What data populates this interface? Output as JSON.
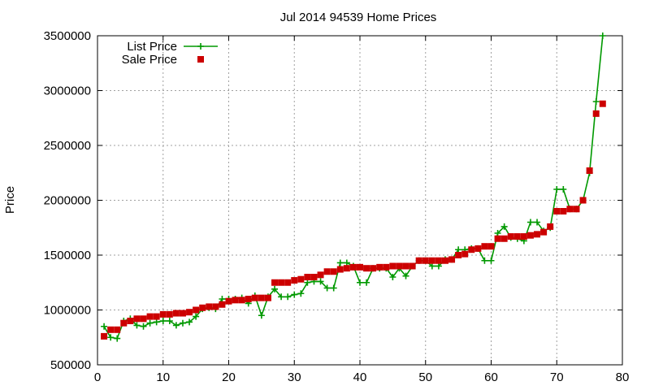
{
  "chart_data": {
    "type": "line",
    "title": "Jul 2014 94539 Home Prices",
    "xlabel": "",
    "ylabel": "Price",
    "xlim": [
      0,
      80
    ],
    "ylim": [
      500000,
      3500000
    ],
    "xticks": [
      "0",
      "10",
      "20",
      "30",
      "40",
      "50",
      "60",
      "70",
      "80"
    ],
    "yticks": [
      "500000",
      "1000000",
      "1500000",
      "2000000",
      "2500000",
      "3000000",
      "3500000"
    ],
    "grid": true,
    "legend_position": "top-left",
    "series": [
      {
        "name": "List Price",
        "style": "line-with-plus-markers",
        "color": "#009900",
        "values": [
          [
            1,
            850000
          ],
          [
            2,
            750000
          ],
          [
            3,
            740000
          ],
          [
            4,
            900000
          ],
          [
            5,
            920000
          ],
          [
            6,
            860000
          ],
          [
            7,
            850000
          ],
          [
            8,
            880000
          ],
          [
            9,
            890000
          ],
          [
            10,
            900000
          ],
          [
            11,
            900000
          ],
          [
            12,
            860000
          ],
          [
            13,
            880000
          ],
          [
            14,
            890000
          ],
          [
            15,
            940000
          ],
          [
            16,
            1010000
          ],
          [
            17,
            1020000
          ],
          [
            18,
            1010000
          ],
          [
            19,
            1100000
          ],
          [
            20,
            1100000
          ],
          [
            21,
            1100000
          ],
          [
            22,
            1110000
          ],
          [
            23,
            1060000
          ],
          [
            24,
            1130000
          ],
          [
            25,
            950000
          ],
          [
            26,
            1120000
          ],
          [
            27,
            1190000
          ],
          [
            28,
            1120000
          ],
          [
            29,
            1120000
          ],
          [
            30,
            1140000
          ],
          [
            31,
            1150000
          ],
          [
            32,
            1250000
          ],
          [
            33,
            1260000
          ],
          [
            34,
            1260000
          ],
          [
            35,
            1200000
          ],
          [
            36,
            1200000
          ],
          [
            37,
            1430000
          ],
          [
            38,
            1430000
          ],
          [
            39,
            1400000
          ],
          [
            40,
            1250000
          ],
          [
            41,
            1250000
          ],
          [
            42,
            1380000
          ],
          [
            43,
            1380000
          ],
          [
            44,
            1380000
          ],
          [
            45,
            1300000
          ],
          [
            46,
            1380000
          ],
          [
            47,
            1310000
          ],
          [
            48,
            1400000
          ],
          [
            49,
            1450000
          ],
          [
            50,
            1450000
          ],
          [
            51,
            1400000
          ],
          [
            52,
            1400000
          ],
          [
            53,
            1460000
          ],
          [
            54,
            1460000
          ],
          [
            55,
            1550000
          ],
          [
            56,
            1550000
          ],
          [
            57,
            1560000
          ],
          [
            58,
            1560000
          ],
          [
            59,
            1450000
          ],
          [
            60,
            1450000
          ],
          [
            61,
            1700000
          ],
          [
            62,
            1760000
          ],
          [
            63,
            1660000
          ],
          [
            64,
            1650000
          ],
          [
            65,
            1630000
          ],
          [
            66,
            1800000
          ],
          [
            67,
            1800000
          ],
          [
            68,
            1720000
          ],
          [
            69,
            1750000
          ],
          [
            70,
            2100000
          ],
          [
            71,
            2100000
          ],
          [
            72,
            1920000
          ],
          [
            73,
            1920000
          ],
          [
            74,
            2000000
          ],
          [
            75,
            2250000
          ],
          [
            76,
            2900000
          ],
          [
            77,
            3500000
          ]
        ]
      },
      {
        "name": "Sale Price",
        "style": "square-points",
        "color": "#cc0000",
        "values": [
          [
            1,
            760000
          ],
          [
            2,
            820000
          ],
          [
            3,
            820000
          ],
          [
            4,
            880000
          ],
          [
            5,
            900000
          ],
          [
            6,
            920000
          ],
          [
            7,
            920000
          ],
          [
            8,
            940000
          ],
          [
            9,
            940000
          ],
          [
            10,
            960000
          ],
          [
            11,
            960000
          ],
          [
            12,
            970000
          ],
          [
            13,
            970000
          ],
          [
            14,
            980000
          ],
          [
            15,
            1000000
          ],
          [
            16,
            1020000
          ],
          [
            17,
            1030000
          ],
          [
            18,
            1030000
          ],
          [
            19,
            1050000
          ],
          [
            20,
            1080000
          ],
          [
            21,
            1090000
          ],
          [
            22,
            1090000
          ],
          [
            23,
            1100000
          ],
          [
            24,
            1110000
          ],
          [
            25,
            1110000
          ],
          [
            26,
            1110000
          ],
          [
            27,
            1250000
          ],
          [
            28,
            1250000
          ],
          [
            29,
            1250000
          ],
          [
            30,
            1270000
          ],
          [
            31,
            1280000
          ],
          [
            32,
            1300000
          ],
          [
            33,
            1300000
          ],
          [
            34,
            1320000
          ],
          [
            35,
            1350000
          ],
          [
            36,
            1350000
          ],
          [
            37,
            1370000
          ],
          [
            38,
            1380000
          ],
          [
            39,
            1390000
          ],
          [
            40,
            1390000
          ],
          [
            41,
            1380000
          ],
          [
            42,
            1380000
          ],
          [
            43,
            1390000
          ],
          [
            44,
            1390000
          ],
          [
            45,
            1400000
          ],
          [
            46,
            1400000
          ],
          [
            47,
            1400000
          ],
          [
            48,
            1400000
          ],
          [
            49,
            1450000
          ],
          [
            50,
            1450000
          ],
          [
            51,
            1450000
          ],
          [
            52,
            1450000
          ],
          [
            53,
            1450000
          ],
          [
            54,
            1460000
          ],
          [
            55,
            1500000
          ],
          [
            56,
            1510000
          ],
          [
            57,
            1550000
          ],
          [
            58,
            1560000
          ],
          [
            59,
            1580000
          ],
          [
            60,
            1580000
          ],
          [
            61,
            1650000
          ],
          [
            62,
            1650000
          ],
          [
            63,
            1670000
          ],
          [
            64,
            1670000
          ],
          [
            65,
            1670000
          ],
          [
            66,
            1680000
          ],
          [
            67,
            1690000
          ],
          [
            68,
            1710000
          ],
          [
            69,
            1760000
          ],
          [
            70,
            1900000
          ],
          [
            71,
            1900000
          ],
          [
            72,
            1920000
          ],
          [
            73,
            1920000
          ],
          [
            74,
            2000000
          ],
          [
            75,
            2270000
          ],
          [
            76,
            2790000
          ],
          [
            77,
            2880000
          ]
        ]
      }
    ]
  }
}
